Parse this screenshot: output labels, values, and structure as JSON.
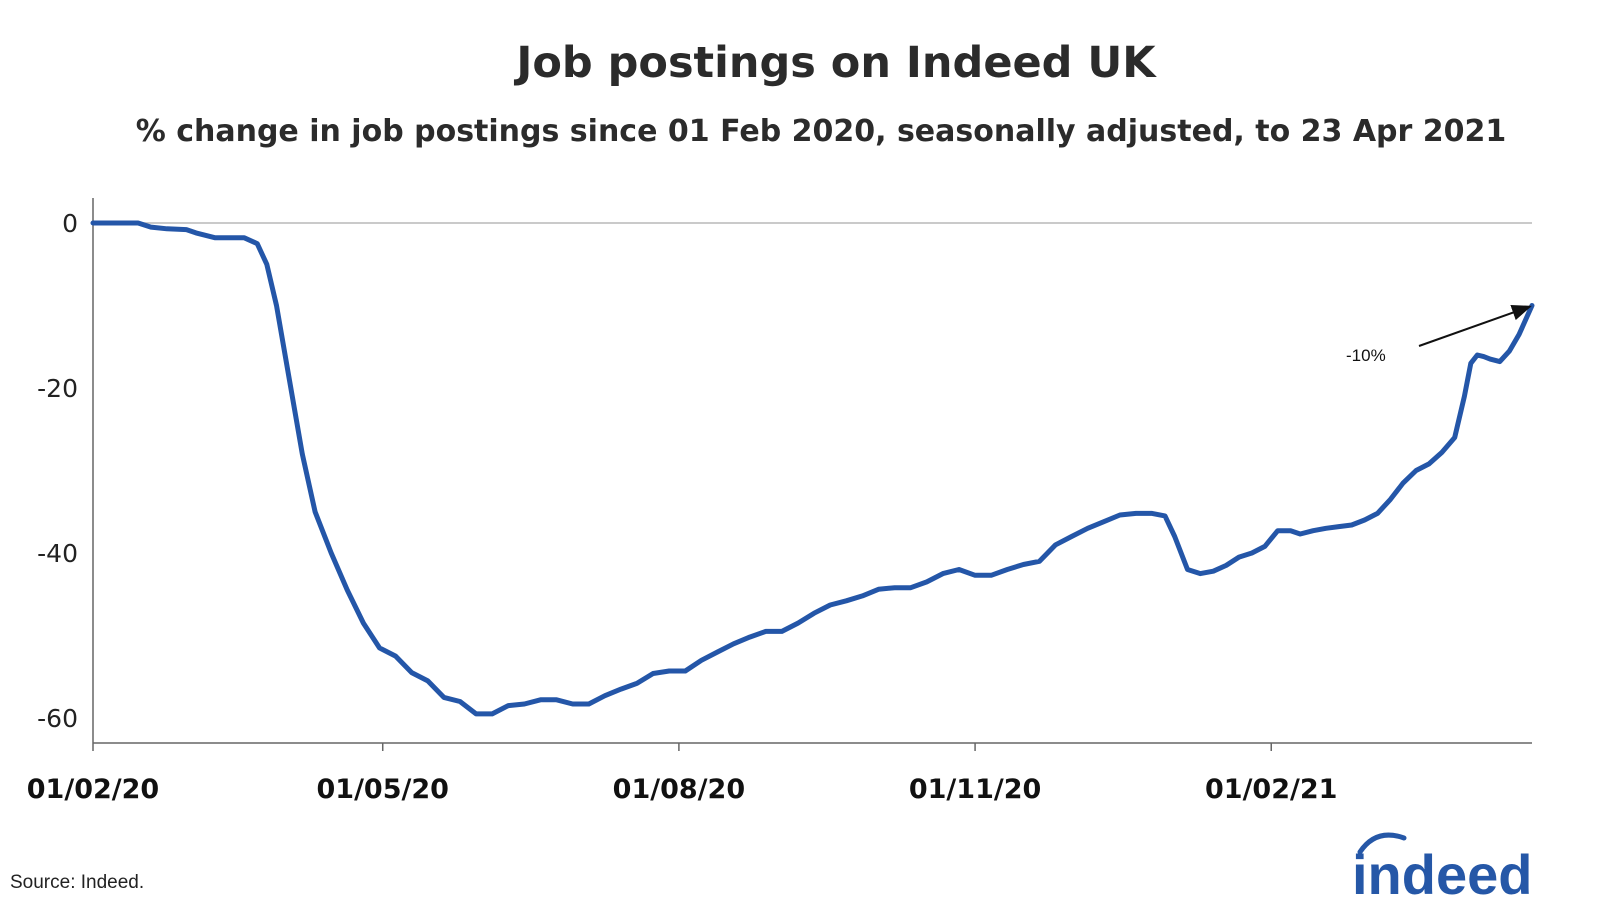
{
  "title": "Job postings on Indeed UK",
  "subtitle": "% change in job postings since 01 Feb 2020, seasonally adjusted, to 23 Apr 2021",
  "source": "Source: Indeed.",
  "logo_text": "indeed",
  "colors": {
    "line": "#2456a8",
    "axis": "#666666",
    "gridline": "#b8b8b8",
    "logo": "#2557a7"
  },
  "chart_data": {
    "type": "line",
    "title": "Job postings on Indeed UK",
    "subtitle": "% change in job postings since 01 Feb 2020, seasonally adjusted, to 23 Apr 2021",
    "xlabel": "",
    "ylabel": "",
    "x_ticks": [
      "01/02/20",
      "01/05/20",
      "01/08/20",
      "01/11/20",
      "01/02/21"
    ],
    "y_ticks": [
      0,
      -20,
      -40,
      -60
    ],
    "ylim": [
      -63,
      3
    ],
    "xlim": [
      "2020-02-01",
      "2021-04-23"
    ],
    "grid": false,
    "annotation": {
      "text": "-10%",
      "date": "2021-04-23",
      "value": -10
    },
    "series": [
      {
        "points": [
          [
            "2020-02-01",
            0
          ],
          [
            "2020-02-08",
            0
          ],
          [
            "2020-02-15",
            0
          ],
          [
            "2020-02-19",
            -0.5
          ],
          [
            "2020-02-24",
            -0.7
          ],
          [
            "2020-03-01",
            -0.8
          ],
          [
            "2020-03-04",
            -1.2
          ],
          [
            "2020-03-10",
            -1.8
          ],
          [
            "2020-03-19",
            -1.8
          ],
          [
            "2020-03-23",
            -2.5
          ],
          [
            "2020-03-26",
            -5
          ],
          [
            "2020-03-29",
            -10
          ],
          [
            "2020-04-02",
            -19
          ],
          [
            "2020-04-06",
            -28
          ],
          [
            "2020-04-10",
            -35
          ],
          [
            "2020-04-15",
            -40
          ],
          [
            "2020-04-20",
            -44.5
          ],
          [
            "2020-04-25",
            -48.5
          ],
          [
            "2020-04-30",
            -51.5
          ],
          [
            "2020-05-05",
            -52.5
          ],
          [
            "2020-05-10",
            -54.5
          ],
          [
            "2020-05-15",
            -55.5
          ],
          [
            "2020-05-20",
            -57.5
          ],
          [
            "2020-05-25",
            -58
          ],
          [
            "2020-05-30",
            -59.5
          ],
          [
            "2020-06-04",
            -59.5
          ],
          [
            "2020-06-09",
            -58.5
          ],
          [
            "2020-06-14",
            -58.3
          ],
          [
            "2020-06-19",
            -57.8
          ],
          [
            "2020-06-24",
            -57.8
          ],
          [
            "2020-06-29",
            -58.3
          ],
          [
            "2020-07-04",
            -58.3
          ],
          [
            "2020-07-09",
            -57.3
          ],
          [
            "2020-07-14",
            -56.5
          ],
          [
            "2020-07-19",
            -55.8
          ],
          [
            "2020-07-24",
            -54.6
          ],
          [
            "2020-07-29",
            -54.3
          ],
          [
            "2020-08-03",
            -54.3
          ],
          [
            "2020-08-08",
            -53
          ],
          [
            "2020-08-13",
            -52
          ],
          [
            "2020-08-18",
            -51
          ],
          [
            "2020-08-23",
            -50.2
          ],
          [
            "2020-08-28",
            -49.5
          ],
          [
            "2020-09-02",
            -49.5
          ],
          [
            "2020-09-07",
            -48.5
          ],
          [
            "2020-09-12",
            -47.3
          ],
          [
            "2020-09-17",
            -46.3
          ],
          [
            "2020-09-22",
            -45.8
          ],
          [
            "2020-09-27",
            -45.2
          ],
          [
            "2020-10-02",
            -44.4
          ],
          [
            "2020-10-07",
            -44.2
          ],
          [
            "2020-10-12",
            -44.2
          ],
          [
            "2020-10-17",
            -43.5
          ],
          [
            "2020-10-22",
            -42.5
          ],
          [
            "2020-10-27",
            -42
          ],
          [
            "2020-11-01",
            -42.7
          ],
          [
            "2020-11-06",
            -42.7
          ],
          [
            "2020-11-11",
            -42
          ],
          [
            "2020-11-16",
            -41.4
          ],
          [
            "2020-11-21",
            -41
          ],
          [
            "2020-11-26",
            -39
          ],
          [
            "2020-12-01",
            -38
          ],
          [
            "2020-12-06",
            -37
          ],
          [
            "2020-12-11",
            -36.2
          ],
          [
            "2020-12-16",
            -35.4
          ],
          [
            "2020-12-21",
            -35.2
          ],
          [
            "2020-12-26",
            -35.2
          ],
          [
            "2020-12-30",
            -35.5
          ],
          [
            "2021-01-02",
            -38
          ],
          [
            "2021-01-06",
            -42
          ],
          [
            "2021-01-10",
            -42.5
          ],
          [
            "2021-01-14",
            -42.2
          ],
          [
            "2021-01-18",
            -41.5
          ],
          [
            "2021-01-22",
            -40.5
          ],
          [
            "2021-01-26",
            -40
          ],
          [
            "2021-01-30",
            -39.2
          ],
          [
            "2021-02-03",
            -37.3
          ],
          [
            "2021-02-07",
            -37.3
          ],
          [
            "2021-02-10",
            -37.7
          ],
          [
            "2021-02-14",
            -37.3
          ],
          [
            "2021-02-18",
            -37
          ],
          [
            "2021-02-22",
            -36.8
          ],
          [
            "2021-02-26",
            -36.6
          ],
          [
            "2021-03-02",
            -36
          ],
          [
            "2021-03-06",
            -35.2
          ],
          [
            "2021-03-10",
            -33.5
          ],
          [
            "2021-03-14",
            -31.5
          ],
          [
            "2021-03-18",
            -30
          ],
          [
            "2021-03-22",
            -29.2
          ],
          [
            "2021-03-26",
            -27.8
          ],
          [
            "2021-03-30",
            -26
          ],
          [
            "2021-04-02",
            -21
          ],
          [
            "2021-04-04",
            -17
          ],
          [
            "2021-04-06",
            -16
          ],
          [
            "2021-04-08",
            -16.2
          ],
          [
            "2021-04-10",
            -16.5
          ],
          [
            "2021-04-13",
            -16.8
          ],
          [
            "2021-04-16",
            -15.5
          ],
          [
            "2021-04-19",
            -13.5
          ],
          [
            "2021-04-23",
            -10
          ]
        ]
      }
    ]
  }
}
